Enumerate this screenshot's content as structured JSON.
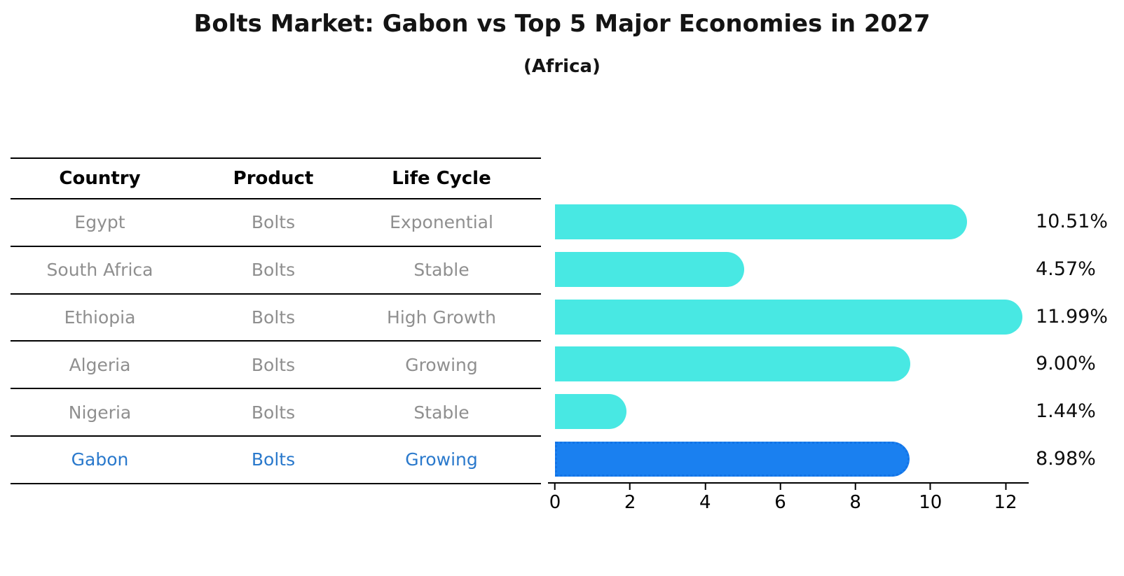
{
  "title": "Bolts Market: Gabon vs Top 5 Major Economies in 2027",
  "subtitle": "(Africa)",
  "table": {
    "headers": [
      "Country",
      "Product",
      "Life Cycle"
    ],
    "rows": [
      {
        "country": "Egypt",
        "product": "Bolts",
        "life_cycle": "Exponential",
        "highlight": false
      },
      {
        "country": "South Africa",
        "product": "Bolts",
        "life_cycle": "Stable",
        "highlight": false
      },
      {
        "country": "Ethiopia",
        "product": "Bolts",
        "life_cycle": "High Growth",
        "highlight": false
      },
      {
        "country": "Algeria",
        "product": "Bolts",
        "life_cycle": "Growing",
        "highlight": false
      },
      {
        "country": "Nigeria",
        "product": "Bolts",
        "life_cycle": "Stable",
        "highlight": false
      },
      {
        "country": "Gabon",
        "product": "Bolts",
        "life_cycle": "Growing",
        "highlight": true
      }
    ]
  },
  "chart_data": {
    "type": "bar",
    "orientation": "horizontal",
    "title": "Bolts Market: Gabon vs Top 5 Major Economies in 2027 (Africa)",
    "categories": [
      "Egypt",
      "South Africa",
      "Ethiopia",
      "Algeria",
      "Nigeria",
      "Gabon"
    ],
    "values": [
      10.51,
      4.57,
      11.99,
      9.0,
      1.44,
      8.98
    ],
    "value_labels": [
      "10.51%",
      "4.57%",
      "11.99%",
      "9.00%",
      "1.44%",
      "8.98%"
    ],
    "x_ticks": [
      0,
      2,
      4,
      6,
      8,
      10,
      12
    ],
    "xlim": [
      0,
      12.8
    ],
    "xlabel": "",
    "ylabel": "",
    "grid": false,
    "legend": false,
    "highlight_index": 5,
    "bar_color": "#48e8e3",
    "highlight_bar_color": "#1a80f0",
    "highlight_border_color": "#1273e6"
  },
  "colors": {
    "background": "#ffffff",
    "line": "#000000",
    "muted_text": "#8f8f8f",
    "highlight_text": "#2a79cc"
  }
}
